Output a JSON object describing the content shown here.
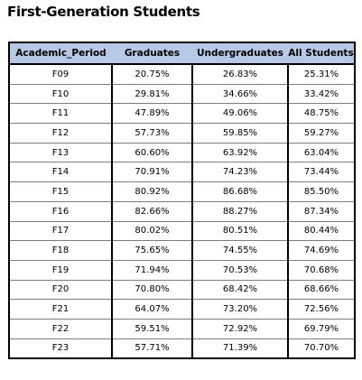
{
  "title": "First-Generation Students",
  "table": {
    "columns": [
      "Academic_Period",
      "Graduates",
      "Undergraduates",
      "All Students"
    ],
    "rows": [
      [
        "F09",
        "20.75%",
        "26.83%",
        "25.31%"
      ],
      [
        "F10",
        "29.81%",
        "34.66%",
        "33.42%"
      ],
      [
        "F11",
        "47.89%",
        "49.06%",
        "48.75%"
      ],
      [
        "F12",
        "57.73%",
        "59.85%",
        "59.27%"
      ],
      [
        "F13",
        "60.60%",
        "63.92%",
        "63.04%"
      ],
      [
        "F14",
        "70.91%",
        "74.23%",
        "73.44%"
      ],
      [
        "F15",
        "80.92%",
        "86.68%",
        "85.50%"
      ],
      [
        "F16",
        "82.66%",
        "88.27%",
        "87.34%"
      ],
      [
        "F17",
        "80.02%",
        "80.51%",
        "80.44%"
      ],
      [
        "F18",
        "75.65%",
        "74.55%",
        "74.69%"
      ],
      [
        "F19",
        "71.94%",
        "70.53%",
        "70.68%"
      ],
      [
        "F20",
        "70.80%",
        "68.42%",
        "68.66%"
      ],
      [
        "F21",
        "64.07%",
        "73.20%",
        "72.56%"
      ],
      [
        "F22",
        "59.51%",
        "72.92%",
        "69.79%"
      ],
      [
        "F23",
        "57.71%",
        "71.39%",
        "70.70%"
      ]
    ]
  },
  "colors": {
    "header_background": "#b8c8e8",
    "border": "#000000"
  }
}
